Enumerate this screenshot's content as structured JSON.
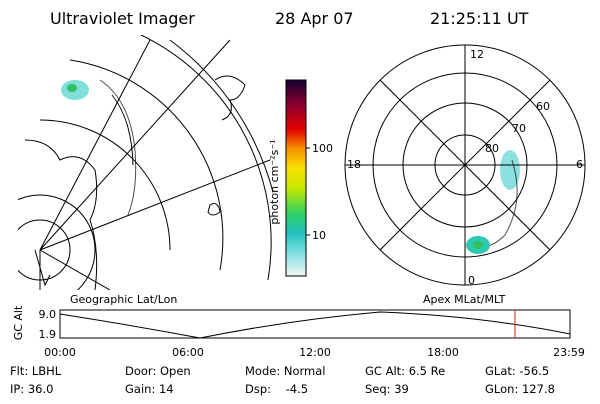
{
  "header": {
    "instrument": "Ultraviolet Imager",
    "date": "28 Apr 07",
    "time": "21:25:11 UT"
  },
  "colorbar": {
    "label": "photon cm⁻²s⁻¹",
    "ticks": [
      "100",
      "10"
    ]
  },
  "polar": {
    "mlt_labels": [
      "12",
      "18",
      "6",
      "0"
    ],
    "lat_labels": [
      "80",
      "70",
      "60"
    ]
  },
  "timeline": {
    "left_title": "Geographic Lat/Lon",
    "right_title": "Apex MLat/MLT",
    "y_label": "GC Alt",
    "y_ticks": [
      "9.0",
      "1.9"
    ],
    "x_ticks": [
      "00:00",
      "06:00",
      "12:00",
      "18:00",
      "23:59"
    ]
  },
  "footer": {
    "rows": [
      [
        "Flt: LBHL",
        "Door: Open",
        "Mode: Normal",
        "GC Alt: 6.5 Re",
        "GLat: -56.5"
      ],
      [
        "IP: 36.0",
        "Gain: 14",
        "Dsp:    -4.5",
        "Seq: 39",
        "GLon: 127.8"
      ]
    ]
  }
}
